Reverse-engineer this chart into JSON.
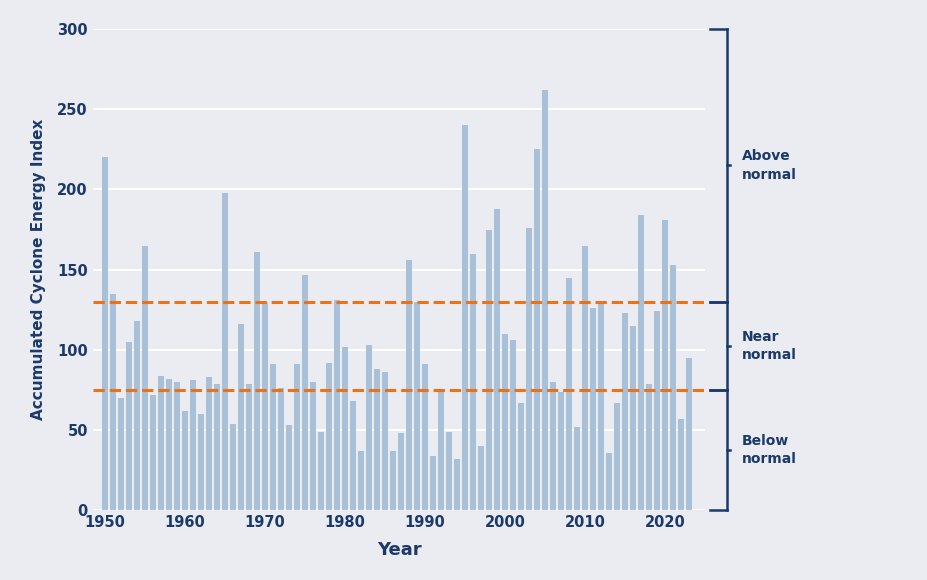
{
  "years": [
    1950,
    1951,
    1952,
    1953,
    1954,
    1955,
    1956,
    1957,
    1958,
    1959,
    1960,
    1961,
    1962,
    1963,
    1964,
    1965,
    1966,
    1967,
    1968,
    1969,
    1970,
    1971,
    1972,
    1973,
    1974,
    1975,
    1976,
    1977,
    1978,
    1979,
    1980,
    1981,
    1982,
    1983,
    1984,
    1985,
    1986,
    1987,
    1988,
    1989,
    1990,
    1991,
    1992,
    1993,
    1994,
    1995,
    1996,
    1997,
    1998,
    1999,
    2000,
    2001,
    2002,
    2003,
    2004,
    2005,
    2006,
    2007,
    2008,
    2009,
    2010,
    2011,
    2012,
    2013,
    2014,
    2015,
    2016,
    2017,
    2018,
    2019,
    2020,
    2021,
    2022,
    2023
  ],
  "values": [
    220,
    135,
    70,
    105,
    118,
    165,
    72,
    84,
    82,
    80,
    62,
    81,
    60,
    83,
    79,
    198,
    54,
    116,
    79,
    161,
    130,
    91,
    76,
    53,
    91,
    147,
    80,
    49,
    92,
    131,
    102,
    68,
    37,
    103,
    88,
    86,
    37,
    48,
    156,
    130,
    91,
    34,
    75,
    49,
    32,
    240,
    160,
    40,
    175,
    188,
    110,
    106,
    67,
    176,
    225,
    262,
    80,
    74,
    145,
    52,
    165,
    126,
    129,
    36,
    67,
    123,
    115,
    184,
    79,
    124,
    181,
    153,
    57,
    95
  ],
  "upper_line": 130,
  "lower_line": 75,
  "bar_color": "#a8c0d8",
  "upper_line_color": "#e8731a",
  "lower_line_color": "#e8731a",
  "background_color": "#eaecf2",
  "grid_color": "#ffffff",
  "axis_color": "#1b3a6b",
  "ylabel": "Accumulated Cyclone Energy Index",
  "xlabel": "Year",
  "ylim": [
    0,
    300
  ],
  "yticks": [
    0,
    50,
    100,
    150,
    200,
    250,
    300
  ],
  "xticks": [
    1950,
    1960,
    1970,
    1980,
    1990,
    2000,
    2010,
    2020
  ],
  "label_above": "Above\nnormal",
  "label_near": "Near\nnormal",
  "label_below": "Below\nnormal",
  "bracket_color": "#1b3a6b"
}
